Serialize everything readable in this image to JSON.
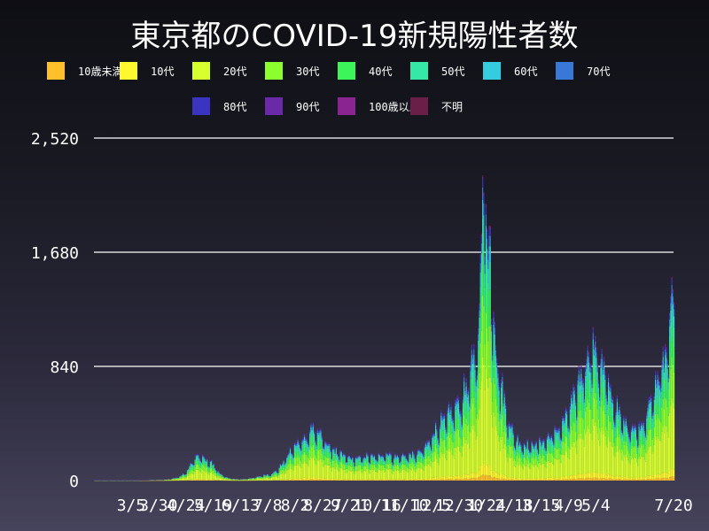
{
  "chart_data": {
    "type": "bar",
    "stacked": true,
    "title": "東京都のCOVID-19新規陽性者数",
    "xlabel": "",
    "ylabel": "",
    "ylim": [
      0,
      2520
    ],
    "y_ticks": [
      "0",
      "840",
      "1,680",
      "2,520"
    ],
    "y_tick_values": [
      0,
      840,
      1680,
      2520
    ],
    "x_ticks": [
      "3/5",
      "3/30",
      "4/24",
      "5/19",
      "6/13",
      "7/8",
      "8/2",
      "8/27",
      "9/21",
      "10/16",
      "11/10",
      "12/5",
      "12/30",
      "1/24",
      "2/18",
      "3/15",
      "4/9",
      "5/4",
      "7/20"
    ],
    "x_tick_days": [
      62,
      87,
      112,
      137,
      162,
      187,
      212,
      237,
      262,
      287,
      312,
      337,
      362,
      387,
      412,
      437,
      462,
      487,
      564
    ],
    "grid": true,
    "legend_position": "top",
    "series": [
      {
        "name": "10歳未満",
        "color": "#ffc02a"
      },
      {
        "name": "10代",
        "color": "#fff82e"
      },
      {
        "name": "20代",
        "color": "#d8ff2e"
      },
      {
        "name": "30代",
        "color": "#8cff2e"
      },
      {
        "name": "40代",
        "color": "#3cf55a"
      },
      {
        "name": "50代",
        "color": "#35e8a8"
      },
      {
        "name": "60代",
        "color": "#34cde0"
      },
      {
        "name": "70代",
        "color": "#3a78d8"
      },
      {
        "name": "80代",
        "color": "#3a34c0"
      },
      {
        "name": "90代",
        "color": "#6a2aa8"
      },
      {
        "name": "100歳以上",
        "color": "#8a2490"
      },
      {
        "name": "不明",
        "color": "#6a1e48"
      }
    ],
    "totals_by_day": {
      "start_date": "2020-01-24",
      "keypoints": [
        [
          0,
          1
        ],
        [
          40,
          1
        ],
        [
          55,
          5
        ],
        [
          62,
          6
        ],
        [
          70,
          12
        ],
        [
          78,
          30
        ],
        [
          84,
          60
        ],
        [
          88,
          120
        ],
        [
          92,
          160
        ],
        [
          95,
          180
        ],
        [
          98,
          175
        ],
        [
          102,
          150
        ],
        [
          106,
          140
        ],
        [
          110,
          100
        ],
        [
          115,
          50
        ],
        [
          120,
          25
        ],
        [
          128,
          12
        ],
        [
          135,
          10
        ],
        [
          140,
          15
        ],
        [
          148,
          25
        ],
        [
          155,
          40
        ],
        [
          162,
          50
        ],
        [
          168,
          80
        ],
        [
          172,
          130
        ],
        [
          178,
          200
        ],
        [
          184,
          260
        ],
        [
          190,
          300
        ],
        [
          196,
          350
        ],
        [
          200,
          390
        ],
        [
          203,
          360
        ],
        [
          208,
          320
        ],
        [
          214,
          260
        ],
        [
          220,
          220
        ],
        [
          226,
          190
        ],
        [
          232,
          170
        ],
        [
          238,
          160
        ],
        [
          244,
          170
        ],
        [
          250,
          180
        ],
        [
          256,
          170
        ],
        [
          262,
          190
        ],
        [
          268,
          200
        ],
        [
          274,
          170
        ],
        [
          280,
          180
        ],
        [
          286,
          185
        ],
        [
          292,
          190
        ],
        [
          298,
          210
        ],
        [
          304,
          260
        ],
        [
          308,
          320
        ],
        [
          312,
          380
        ],
        [
          316,
          420
        ],
        [
          320,
          450
        ],
        [
          324,
          480
        ],
        [
          328,
          520
        ],
        [
          332,
          560
        ],
        [
          336,
          600
        ],
        [
          340,
          700
        ],
        [
          344,
          800
        ],
        [
          348,
          900
        ],
        [
          350,
          1000
        ],
        [
          352,
          1300
        ],
        [
          354,
          1700
        ],
        [
          356,
          2450
        ],
        [
          358,
          2050
        ],
        [
          360,
          1600
        ],
        [
          362,
          1800
        ],
        [
          364,
          1300
        ],
        [
          366,
          1150
        ],
        [
          368,
          900
        ],
        [
          372,
          700
        ],
        [
          376,
          550
        ],
        [
          380,
          400
        ],
        [
          386,
          300
        ],
        [
          392,
          270
        ],
        [
          398,
          260
        ],
        [
          404,
          270
        ],
        [
          410,
          290
        ],
        [
          416,
          320
        ],
        [
          422,
          360
        ],
        [
          428,
          420
        ],
        [
          432,
          480
        ],
        [
          436,
          560
        ],
        [
          440,
          650
        ],
        [
          444,
          760
        ],
        [
          446,
          820
        ],
        [
          450,
          870
        ],
        [
          452,
          930
        ],
        [
          455,
          1000
        ],
        [
          458,
          940
        ],
        [
          462,
          880
        ],
        [
          466,
          800
        ],
        [
          470,
          700
        ],
        [
          474,
          600
        ],
        [
          478,
          520
        ],
        [
          482,
          460
        ],
        [
          486,
          420
        ],
        [
          490,
          400
        ],
        [
          494,
          380
        ],
        [
          498,
          380
        ],
        [
          502,
          450
        ],
        [
          506,
          520
        ],
        [
          510,
          600
        ],
        [
          514,
          720
        ],
        [
          518,
          850
        ],
        [
          522,
          900
        ],
        [
          526,
          1200
        ],
        [
          528,
          1350
        ],
        [
          530,
          1390
        ]
      ],
      "last_day": 530
    }
  }
}
